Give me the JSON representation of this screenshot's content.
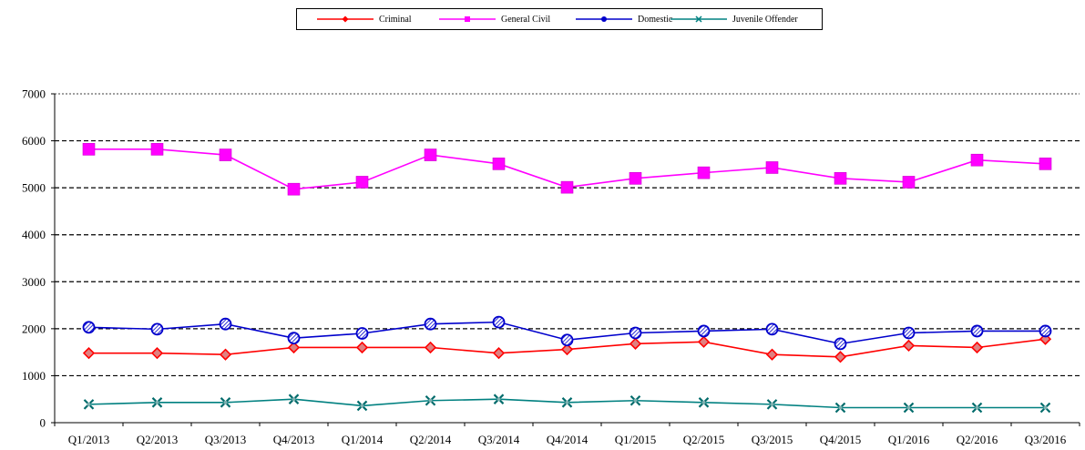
{
  "chart_data": {
    "type": "line",
    "categories": [
      "Q1/2013",
      "Q2/2013",
      "Q3/2013",
      "Q4/2013",
      "Q1/2014",
      "Q2/2014",
      "Q3/2014",
      "Q4/2014",
      "Q1/2015",
      "Q2/2015",
      "Q3/2015",
      "Q4/2015",
      "Q1/2016",
      "Q2/2016",
      "Q3/2016"
    ],
    "ylim": [
      0,
      7000
    ],
    "yticks": [
      0,
      1000,
      2000,
      3000,
      4000,
      5000,
      6000,
      7000
    ],
    "ytick_labels": [
      "0",
      "1000",
      "2000",
      "3000",
      "4000",
      "5000",
      "6000",
      "7000"
    ],
    "grid": "horizontal-dashed",
    "legend_position": "top-center",
    "series": [
      {
        "name": "Criminal",
        "color": "#ff0000",
        "marker": "diamond",
        "values": [
          1480,
          1480,
          1450,
          1600,
          1600,
          1600,
          1480,
          1560,
          1680,
          1720,
          1450,
          1400,
          1640,
          1600,
          1780
        ]
      },
      {
        "name": "General Civil",
        "color": "#ff00ff",
        "marker": "square",
        "values": [
          5820,
          5820,
          5700,
          4970,
          5120,
          5700,
          5510,
          5010,
          5200,
          5320,
          5430,
          5200,
          5120,
          5590,
          5510
        ]
      },
      {
        "name": "Domestic",
        "color": "#0000cc",
        "marker": "circle",
        "values": [
          2030,
          1990,
          2100,
          1800,
          1900,
          2100,
          2140,
          1760,
          1910,
          1950,
          1990,
          1680,
          1910,
          1950,
          1950
        ]
      },
      {
        "name": "Juvenile Offender",
        "color": "#008080",
        "marker": "x",
        "values": [
          390,
          430,
          430,
          500,
          360,
          470,
          500,
          430,
          470,
          430,
          390,
          320,
          320,
          320,
          320
        ]
      }
    ]
  }
}
